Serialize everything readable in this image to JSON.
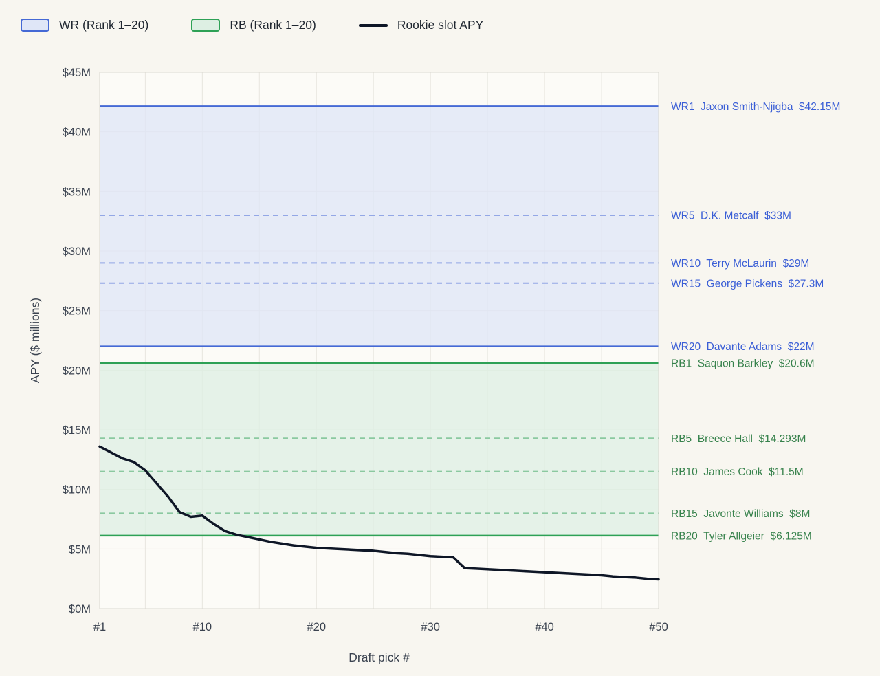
{
  "chart_data": {
    "type": "line",
    "title": "",
    "xlabel": "Draft pick #",
    "ylabel": "APY ($ millions)",
    "xlim": [
      1,
      50
    ],
    "ylim": [
      0,
      45
    ],
    "grid": true,
    "legend_position": "top-left",
    "colors": {
      "page_bg": "#f8f6f0",
      "plot_bg": "#fcfbf7",
      "grid": "#e7e5de",
      "border": "#dad8d1",
      "tick_text": "#3b4350"
    },
    "x_ticks": [
      {
        "value": 1,
        "label": "#1"
      },
      {
        "value": 10,
        "label": "#10"
      },
      {
        "value": 20,
        "label": "#20"
      },
      {
        "value": 30,
        "label": "#30"
      },
      {
        "value": 40,
        "label": "#40"
      },
      {
        "value": 50,
        "label": "#50"
      }
    ],
    "y_ticks": [
      {
        "value": 0,
        "label": "$0M"
      },
      {
        "value": 5,
        "label": "$5M"
      },
      {
        "value": 10,
        "label": "$10M"
      },
      {
        "value": 15,
        "label": "$15M"
      },
      {
        "value": 20,
        "label": "$20M"
      },
      {
        "value": 25,
        "label": "$25M"
      },
      {
        "value": 30,
        "label": "$30M"
      },
      {
        "value": 35,
        "label": "$35M"
      },
      {
        "value": 40,
        "label": "$40M"
      },
      {
        "value": 45,
        "label": "$45M"
      }
    ],
    "x_grid": [
      5,
      10,
      15,
      20,
      25,
      30,
      35,
      40,
      45
    ],
    "y_grid": [
      5,
      10,
      15,
      20,
      25,
      30,
      35,
      40
    ],
    "legend": [
      {
        "label": "WR (Rank 1–20)",
        "type": "band",
        "fill": "#dfe6f7",
        "stroke": "#4569d5"
      },
      {
        "label": "RB (Rank 1–20)",
        "type": "band",
        "fill": "#ddefe3",
        "stroke": "#2ea156"
      },
      {
        "label": "Rookie slot APY",
        "type": "line",
        "stroke": "#0e1626"
      }
    ],
    "bands": [
      {
        "name": "WR",
        "top": 42.15,
        "bottom": 22,
        "fill": "#dfe6f7",
        "fill_opacity": 0.75,
        "stroke": "#4569d5",
        "dash_stroke": "#93a7e6",
        "solid_lines": [
          42.15,
          22
        ],
        "dashed_lines": [
          33,
          29,
          27.3
        ]
      },
      {
        "name": "RB",
        "top": 20.6,
        "bottom": 6.125,
        "fill": "#ddefe3",
        "fill_opacity": 0.75,
        "stroke": "#2ea156",
        "dash_stroke": "#8bc9a0",
        "solid_lines": [
          20.6,
          6.125
        ],
        "dashed_lines": [
          14.293,
          11.5,
          8
        ]
      }
    ],
    "series": [
      {
        "name": "Rookie slot APY",
        "color": "#0e1626",
        "width": 3.5,
        "x": [
          1,
          2,
          3,
          4,
          5,
          6,
          7,
          8,
          9,
          10,
          11,
          12,
          13,
          14,
          15,
          16,
          17,
          18,
          19,
          20,
          21,
          22,
          23,
          24,
          25,
          26,
          27,
          28,
          29,
          30,
          31,
          32,
          33,
          34,
          35,
          36,
          37,
          38,
          39,
          40,
          41,
          42,
          43,
          44,
          45,
          46,
          47,
          48,
          49,
          50
        ],
        "y": [
          13.6,
          13.1,
          12.6,
          12.3,
          11.6,
          10.5,
          9.4,
          8.1,
          7.7,
          7.8,
          7.1,
          6.5,
          6.2,
          6.0,
          5.8,
          5.6,
          5.45,
          5.3,
          5.2,
          5.1,
          5.05,
          5.0,
          4.95,
          4.9,
          4.85,
          4.75,
          4.65,
          4.6,
          4.5,
          4.4,
          4.35,
          4.3,
          3.4,
          3.35,
          3.3,
          3.25,
          3.2,
          3.15,
          3.1,
          3.05,
          3.0,
          2.95,
          2.9,
          2.85,
          2.8,
          2.7,
          2.65,
          2.6,
          2.5,
          2.45
        ]
      }
    ],
    "annotations": [
      {
        "rank": "WR1",
        "player": "Jaxon Smith-Njigba",
        "apy": "$42.15M",
        "value": 42.15,
        "color": "#3a5ed6"
      },
      {
        "rank": "WR5",
        "player": "D.K. Metcalf",
        "apy": "$33M",
        "value": 33,
        "color": "#3a5ed6"
      },
      {
        "rank": "WR10",
        "player": "Terry McLaurin",
        "apy": "$29M",
        "value": 29,
        "color": "#3a5ed6"
      },
      {
        "rank": "WR15",
        "player": "George Pickens",
        "apy": "$27.3M",
        "value": 27.3,
        "color": "#3a5ed6"
      },
      {
        "rank": "WR20",
        "player": "Davante Adams",
        "apy": "$22M",
        "value": 22,
        "color": "#3a5ed6"
      },
      {
        "rank": "RB1",
        "player": "Saquon Barkley",
        "apy": "$20.6M",
        "value": 20.6,
        "color": "#37824c"
      },
      {
        "rank": "RB5",
        "player": "Breece Hall",
        "apy": "$14.293M",
        "value": 14.293,
        "color": "#37824c"
      },
      {
        "rank": "RB10",
        "player": "James Cook",
        "apy": "$11.5M",
        "value": 11.5,
        "color": "#37824c"
      },
      {
        "rank": "RB15",
        "player": "Javonte Williams",
        "apy": "$8M",
        "value": 8,
        "color": "#37824c"
      },
      {
        "rank": "RB20",
        "player": "Tyler Allgeier",
        "apy": "$6.125M",
        "value": 6.125,
        "color": "#37824c"
      }
    ]
  }
}
